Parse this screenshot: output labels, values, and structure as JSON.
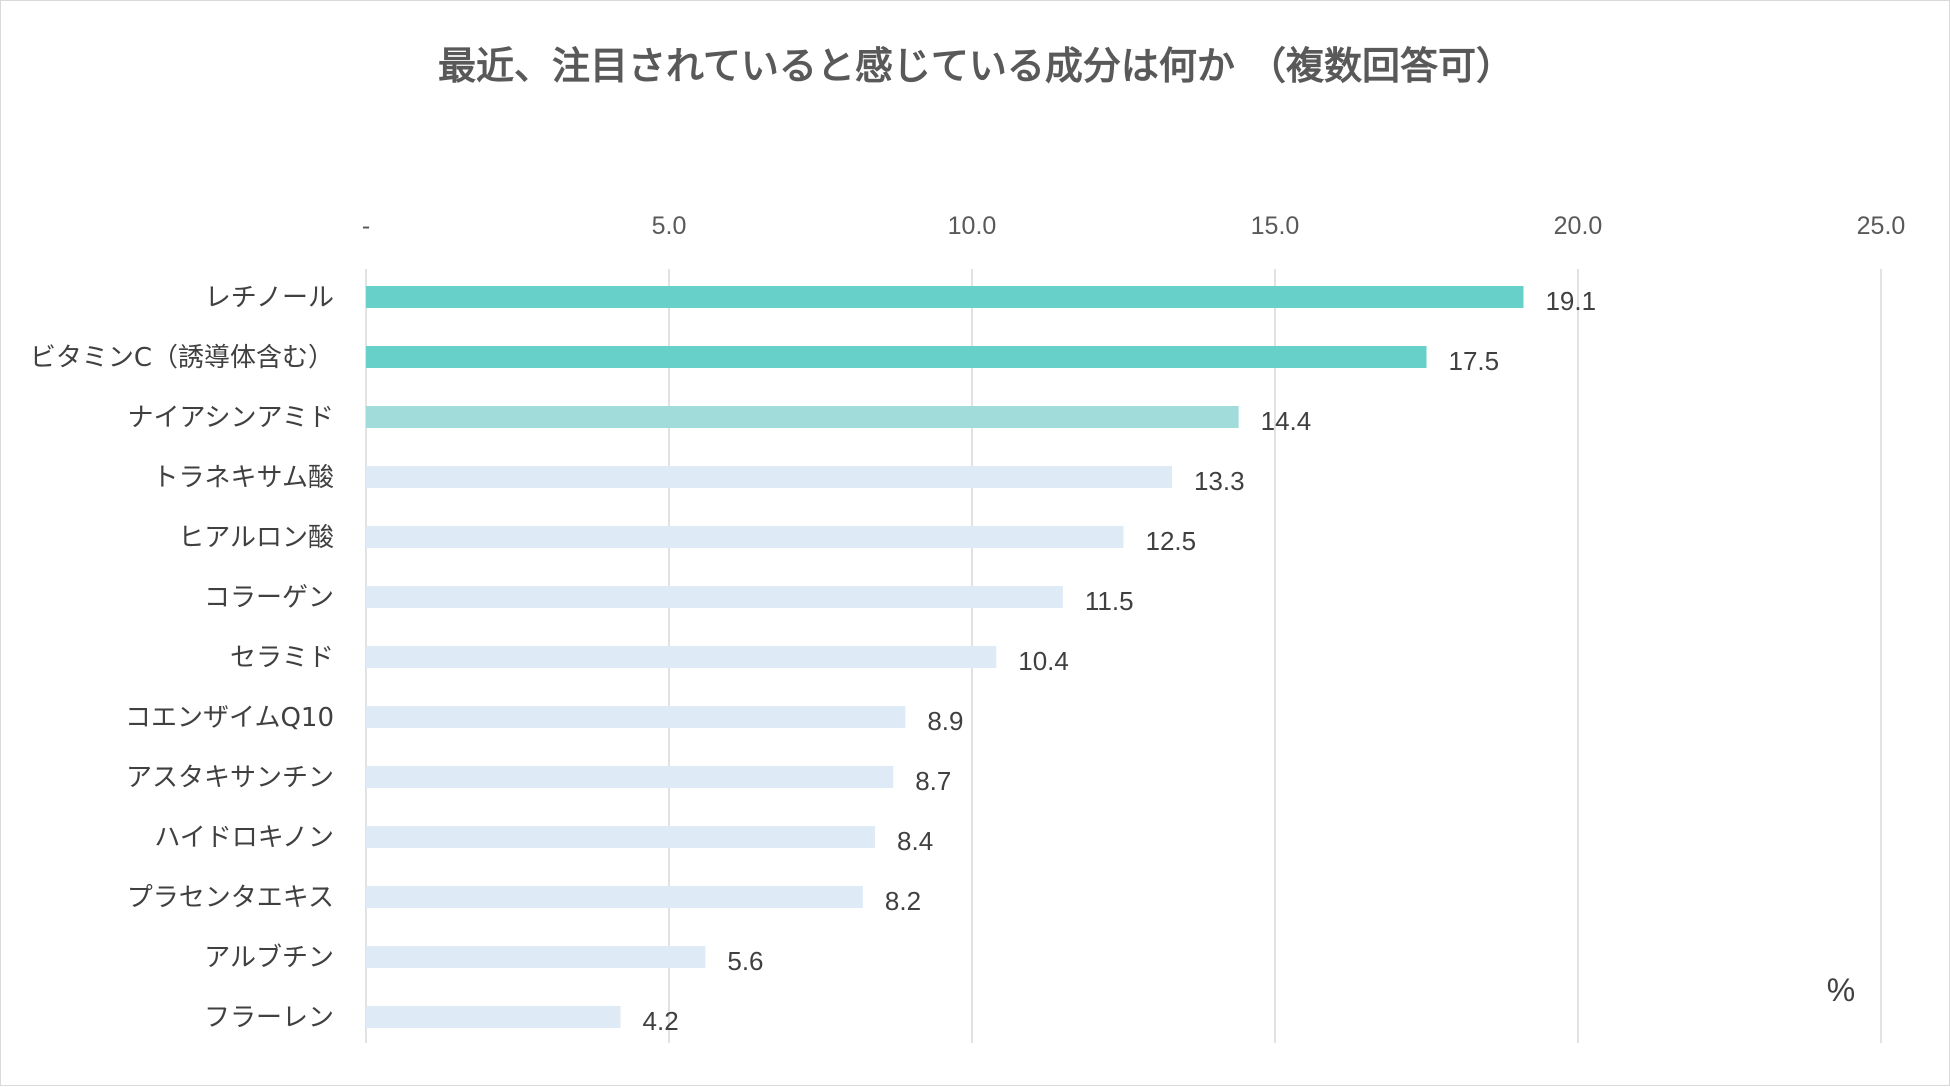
{
  "chart_data": {
    "type": "bar",
    "orientation": "horizontal",
    "title": "最近、注目されていると感じている成分は何か （複数回答可）",
    "unit_label": "%",
    "xlim": [
      0,
      25
    ],
    "x_ticks": [
      0,
      5,
      10,
      15,
      20,
      25
    ],
    "x_tick_labels": [
      "-",
      "5.0",
      "10.0",
      "15.0",
      "20.0",
      "25.0"
    ],
    "grid": true,
    "categories": [
      "レチノール",
      "ビタミンC（誘導体含む）",
      "ナイアシンアミド",
      "トラネキサム酸",
      "ヒアルロン酸",
      "コラーゲン",
      "セラミド",
      "コエンザイムQ10",
      "アスタキサンチン",
      "ハイドロキノン",
      "プラセンタエキス",
      "アルブチン",
      "フラーレン"
    ],
    "values": [
      19.1,
      17.5,
      14.4,
      13.3,
      12.5,
      11.5,
      10.4,
      8.9,
      8.7,
      8.4,
      8.2,
      5.6,
      4.2
    ],
    "value_labels": [
      "19.1",
      "17.5",
      "14.4",
      "13.3",
      "12.5",
      "11.5",
      "10.4",
      "8.9",
      "8.7",
      "8.4",
      "8.2",
      "5.6",
      "4.2"
    ],
    "bar_colors": [
      "#66D0C9",
      "#66D0C9",
      "#A2DCDA",
      "#DEEAF6",
      "#DEEAF6",
      "#DEEAF6",
      "#DEEAF6",
      "#DEEAF6",
      "#DEEAF6",
      "#DEEAF6",
      "#DEEAF6",
      "#DEEAF6",
      "#DEEAF6"
    ]
  }
}
